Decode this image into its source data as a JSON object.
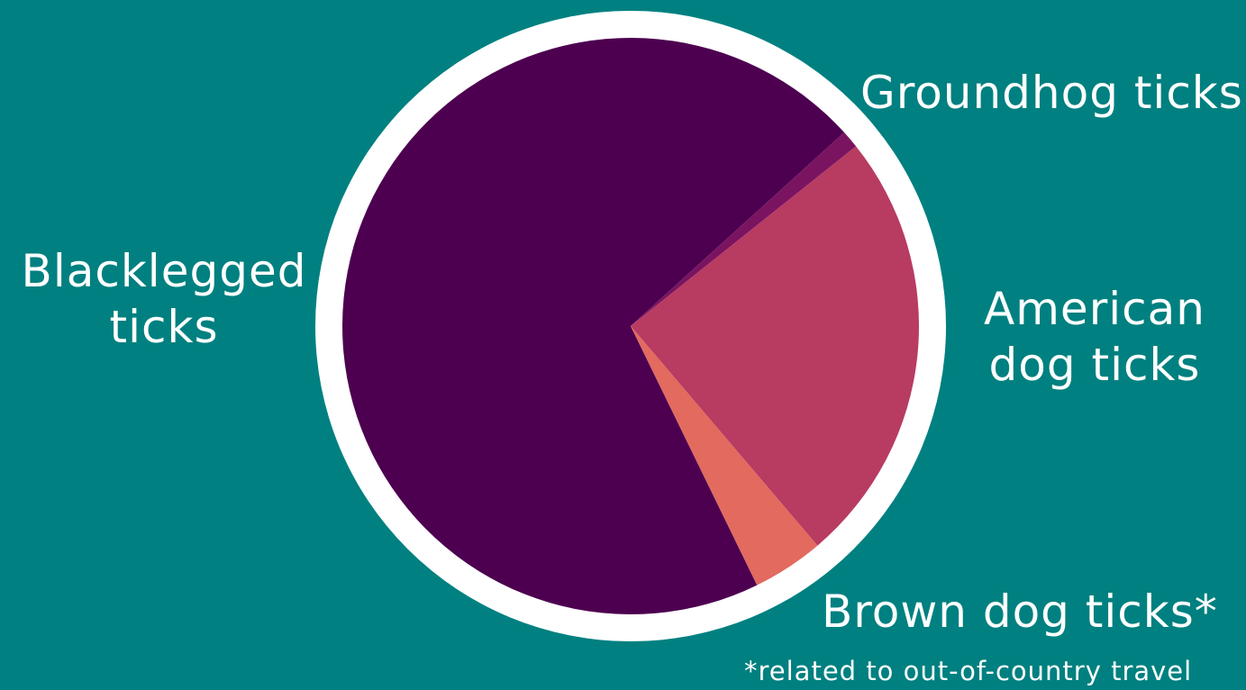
{
  "chart_data": {
    "type": "pie",
    "title": "",
    "slices": [
      {
        "label": "Blacklegged ticks",
        "value": 70.5,
        "color": "#4d0050"
      },
      {
        "label": "Groundhog ticks",
        "value": 1.0,
        "color": "#7a1460"
      },
      {
        "label": "American dog ticks",
        "value": 24.5,
        "color": "#b83b62"
      },
      {
        "label": "Brown dog ticks*",
        "value": 4.0,
        "color": "#e26a5e"
      }
    ],
    "labels_display": {
      "blacklegged": [
        "Blacklegged",
        "ticks"
      ],
      "groundhog": [
        "Groundhog ticks"
      ],
      "american": [
        "American",
        "dog ticks"
      ],
      "brown": [
        "Brown dog ticks*"
      ]
    },
    "footnote": "*related to out-of-country travel",
    "colors": {
      "background": "#008080",
      "ring": "#ffffff"
    }
  }
}
